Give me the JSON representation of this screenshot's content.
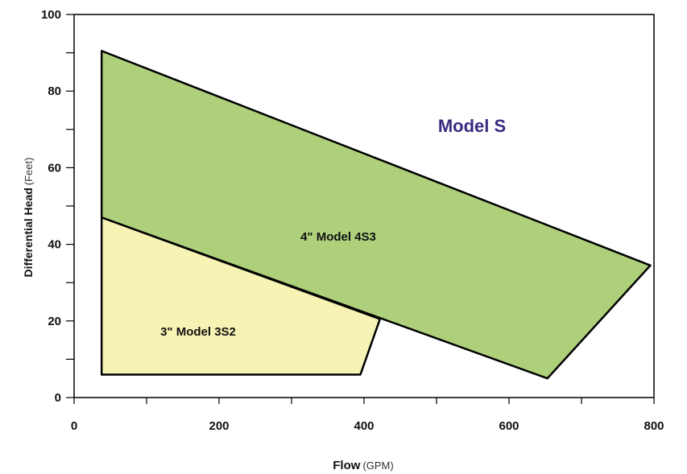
{
  "chart_data": {
    "type": "area",
    "title": "Model S",
    "xlabel": {
      "main": "Flow",
      "unit": "(GPM)"
    },
    "ylabel": {
      "main": "Differential Head",
      "unit": "(Feet)"
    },
    "xlim": [
      0,
      800
    ],
    "ylim": [
      0,
      100
    ],
    "x_ticks": [
      "0",
      "200",
      "400",
      "600",
      "800"
    ],
    "y_ticks": [
      "0",
      "20",
      "40",
      "60",
      "80",
      "100"
    ],
    "grid": false,
    "series": [
      {
        "name": "4\" Model 4S3",
        "color": "#aed07b",
        "polygon": [
          [
            38,
            90.5
          ],
          [
            795,
            34.5
          ],
          [
            653,
            5
          ],
          [
            38,
            47
          ]
        ]
      },
      {
        "name": "3\" Model 3S2",
        "color": "#f7f3b5",
        "polygon": [
          [
            38,
            47
          ],
          [
            422,
            20.5
          ],
          [
            395,
            6
          ],
          [
            38,
            6
          ]
        ]
      }
    ],
    "colors": {
      "title": "#3b2b80",
      "outline": "#000000"
    }
  }
}
